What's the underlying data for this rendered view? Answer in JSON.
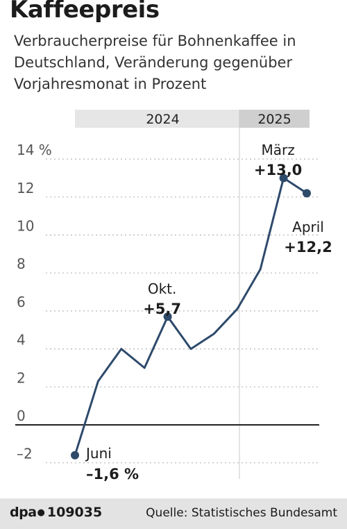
{
  "title": "Kaffeepreis",
  "subtitle": "Verbraucherpreise für Bohnenkaffee in Deutschland, Veränderung gegenüber Vorjahresmonat in Prozent",
  "footer": {
    "brand": "dpa",
    "id": "109035",
    "source": "Quelle: Statistisches Bundesamt"
  },
  "colors": {
    "line": "#2e4a6b",
    "axis": "#222222",
    "grid": "#b5b5b5",
    "band_2024": "#e6e6e6",
    "band_2025": "#cfcfcf",
    "footer_bg": "#e3e3e3"
  },
  "chart_data": {
    "type": "line",
    "years": [
      {
        "label": "2024",
        "from_month": 0,
        "to_month": 6
      },
      {
        "label": "2025",
        "from_month": 7,
        "to_month": 10
      }
    ],
    "x_months": [
      "2024-06",
      "2024-07",
      "2024-08",
      "2024-09",
      "2024-10",
      "2024-11",
      "2024-12",
      "2025-01",
      "2025-02",
      "2025-03",
      "2025-04"
    ],
    "values": [
      -1.6,
      2.3,
      4.0,
      3.0,
      5.7,
      4.0,
      4.8,
      6.1,
      8.2,
      13.0,
      12.2
    ],
    "ylim": [
      -3,
      15
    ],
    "yticks": [
      -2,
      0,
      2,
      4,
      6,
      8,
      10,
      12,
      14
    ],
    "ytick_labels": [
      "–2",
      "0",
      "2",
      "4",
      "6",
      "8",
      "10",
      "12",
      "14 %"
    ],
    "grid": true,
    "annotations": [
      {
        "index": 0,
        "name": "Juni",
        "value": "–1,6 %"
      },
      {
        "index": 4,
        "name": "Okt.",
        "value": "+5,7"
      },
      {
        "index": 9,
        "name": "März",
        "value": "+13,0"
      },
      {
        "index": 10,
        "name": "April",
        "value": "+12,2"
      }
    ]
  }
}
